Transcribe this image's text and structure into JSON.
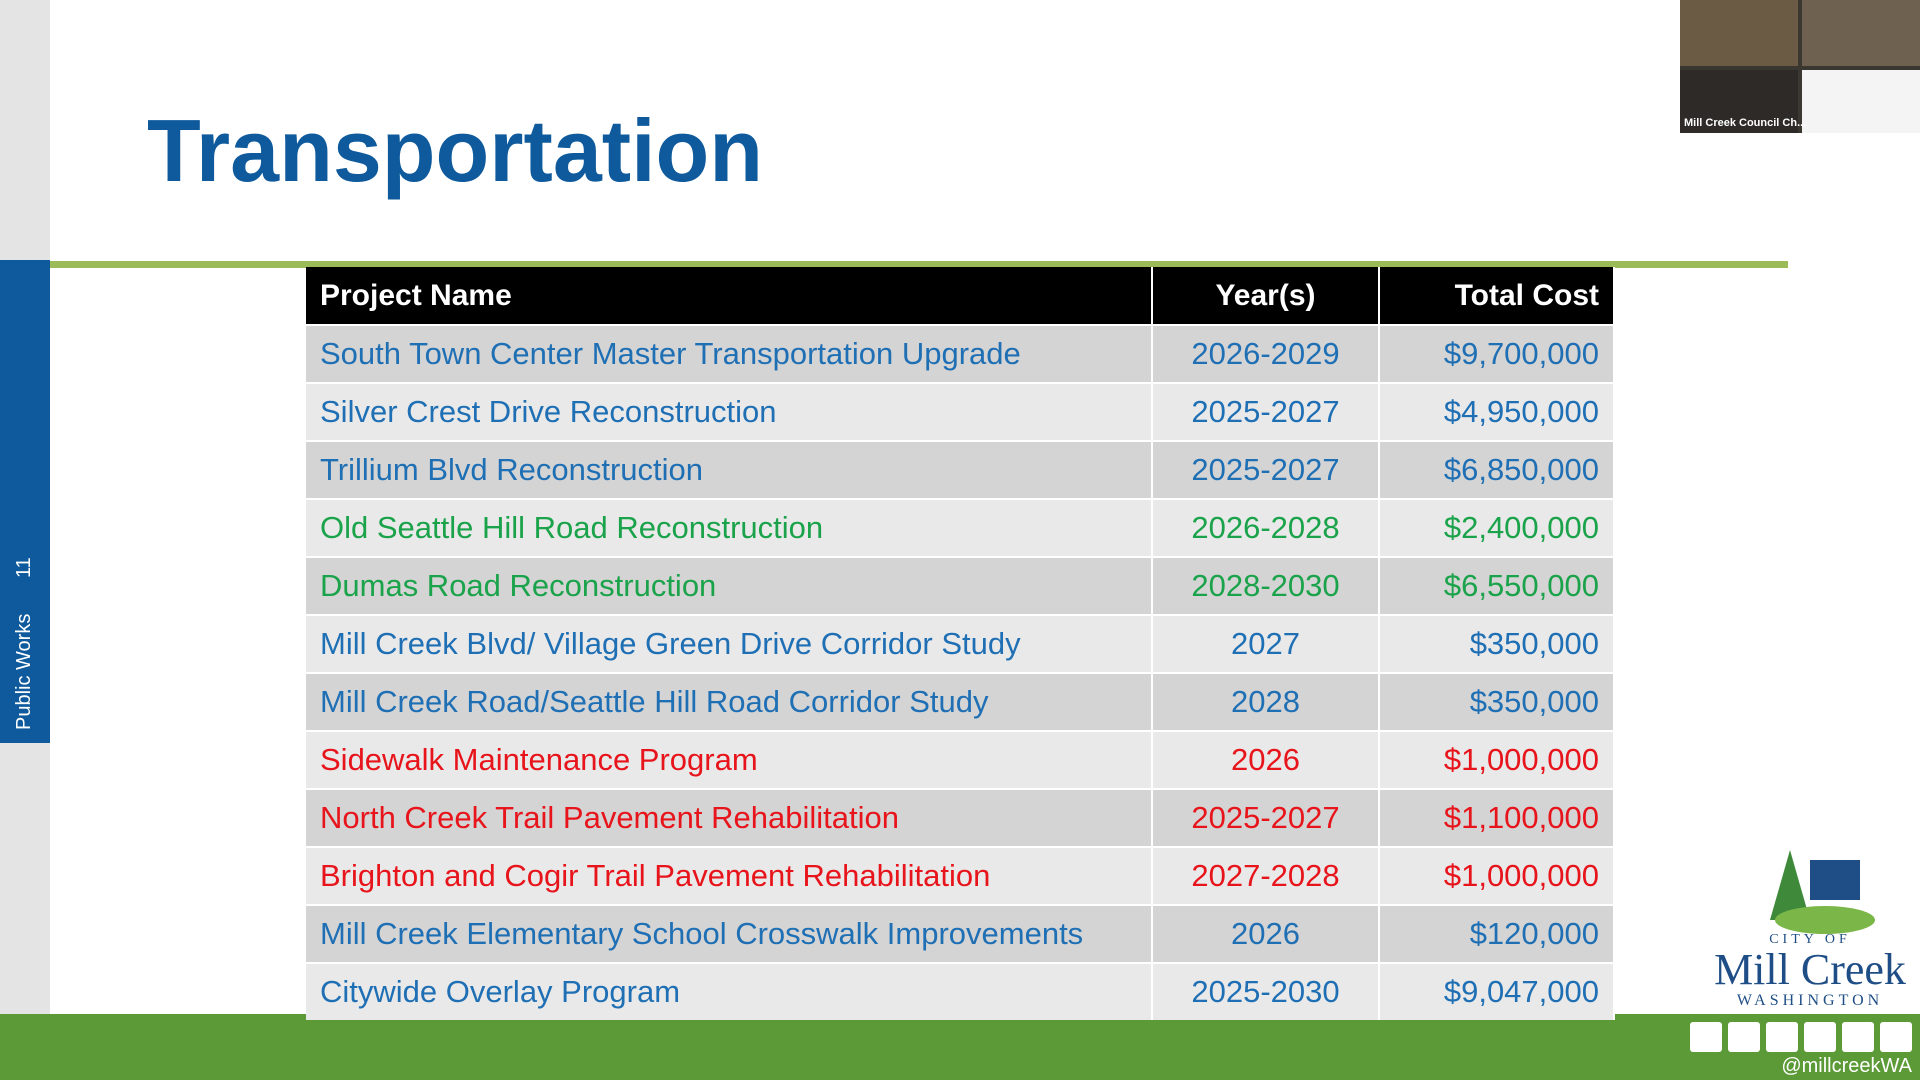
{
  "sidebar": {
    "page_number": "11",
    "section": "Public Works"
  },
  "title": "Transportation",
  "table": {
    "header": [
      "Project Name",
      "Year(s)",
      "Total Cost"
    ],
    "rows": [
      {
        "cells": [
          "South Town Center Master Transportation Upgrade",
          "2026-2029",
          "$9,700,000"
        ],
        "color": "#1f6fb5"
      },
      {
        "cells": [
          "Silver Crest Drive Reconstruction",
          "2025-2027",
          "$4,950,000"
        ],
        "color": "#1f6fb5"
      },
      {
        "cells": [
          "Trillium Blvd Reconstruction",
          "2025-2027",
          "$6,850,000"
        ],
        "color": "#1f6fb5"
      },
      {
        "cells": [
          "Old Seattle Hill Road Reconstruction",
          "2026-2028",
          "$2,400,000"
        ],
        "color": "#1aa34a"
      },
      {
        "cells": [
          "Dumas Road Reconstruction",
          "2028-2030",
          "$6,550,000"
        ],
        "color": "#1aa34a"
      },
      {
        "cells": [
          "Mill Creek Blvd/ Village Green Drive Corridor Study",
          "2027",
          "$350,000"
        ],
        "color": "#1f6fb5"
      },
      {
        "cells": [
          "Mill Creek Road/Seattle Hill Road Corridor Study",
          "2028",
          "$350,000"
        ],
        "color": "#1f6fb5"
      },
      {
        "cells": [
          "Sidewalk Maintenance Program",
          "2026",
          "$1,000,000"
        ],
        "color": "#e8141b"
      },
      {
        "cells": [
          "North Creek Trail Pavement Rehabilitation",
          "2025-2027",
          "$1,100,000"
        ],
        "color": "#e8141b"
      },
      {
        "cells": [
          "Brighton and Cogir Trail Pavement Rehabilitation",
          "2027-2028",
          "$1,000,000"
        ],
        "color": "#e8141b"
      },
      {
        "cells": [
          "Mill Creek Elementary School Crosswalk Improvements",
          "2026",
          "$120,000"
        ],
        "color": "#1f6fb5"
      },
      {
        "cells": [
          "Citywide Overlay Program",
          "2025-2030",
          "$9,047,000"
        ],
        "color": "#1f6fb5"
      }
    ]
  },
  "video": {
    "caption": "Mill Creek Council Ch..."
  },
  "logo": {
    "city_of": "CITY OF",
    "name": "Mill Creek",
    "state": "WASHINGTON"
  },
  "social": {
    "handle": "@millcreekWA"
  }
}
